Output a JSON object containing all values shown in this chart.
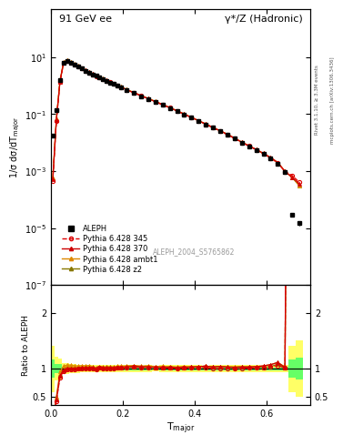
{
  "title_left": "91 GeV ee",
  "title_right": "γ*/Z (Hadronic)",
  "ylabel_main": "1/σ dσ/dT$_{\\mathrm{major}}$",
  "ylabel_ratio": "Ratio to ALEPH",
  "xlabel": "T$_{\\mathrm{major}}$",
  "watermark": "ALEPH_2004_S5765862",
  "right_label_top": "Rivet 3.1.10, ≥ 3.3M events",
  "right_label_bottom": "mcplots.cern.ch [arXiv:1306.3436]",
  "aleph_x": [
    0.005,
    0.015,
    0.025,
    0.035,
    0.045,
    0.055,
    0.065,
    0.075,
    0.085,
    0.095,
    0.105,
    0.115,
    0.125,
    0.135,
    0.145,
    0.155,
    0.165,
    0.175,
    0.185,
    0.195,
    0.21,
    0.23,
    0.25,
    0.27,
    0.29,
    0.31,
    0.33,
    0.35,
    0.37,
    0.39,
    0.41,
    0.43,
    0.45,
    0.47,
    0.49,
    0.51,
    0.53,
    0.55,
    0.57,
    0.59,
    0.61,
    0.63,
    0.65,
    0.67,
    0.69
  ],
  "aleph_y": [
    0.018,
    0.14,
    1.6,
    6.5,
    7.5,
    6.5,
    5.5,
    4.8,
    4.0,
    3.4,
    2.9,
    2.5,
    2.2,
    1.9,
    1.7,
    1.5,
    1.3,
    1.15,
    1.0,
    0.88,
    0.7,
    0.55,
    0.43,
    0.34,
    0.27,
    0.21,
    0.165,
    0.128,
    0.098,
    0.075,
    0.057,
    0.043,
    0.033,
    0.025,
    0.019,
    0.014,
    0.01,
    0.0075,
    0.0055,
    0.004,
    0.0028,
    0.0018,
    0.00095,
    3e-05,
    1.5e-05
  ],
  "aleph_yerr": [
    0.003,
    0.012,
    0.12,
    0.25,
    0.28,
    0.22,
    0.18,
    0.14,
    0.11,
    0.09,
    0.08,
    0.06,
    0.055,
    0.048,
    0.042,
    0.037,
    0.032,
    0.028,
    0.024,
    0.021,
    0.017,
    0.013,
    0.01,
    0.008,
    0.006,
    0.005,
    0.004,
    0.003,
    0.0024,
    0.0018,
    0.0014,
    0.001,
    0.0008,
    0.0006,
    0.00045,
    0.00033,
    0.00024,
    0.00018,
    0.00013,
    9e-05,
    6.5e-05,
    4.5e-05,
    2.5e-05,
    5e-06,
    3e-06
  ],
  "aleph_xw": [
    0.01,
    0.01,
    0.01,
    0.01,
    0.01,
    0.01,
    0.01,
    0.01,
    0.01,
    0.01,
    0.01,
    0.01,
    0.01,
    0.01,
    0.01,
    0.01,
    0.01,
    0.01,
    0.01,
    0.01,
    0.02,
    0.02,
    0.02,
    0.02,
    0.02,
    0.02,
    0.02,
    0.02,
    0.02,
    0.02,
    0.02,
    0.02,
    0.02,
    0.02,
    0.02,
    0.02,
    0.02,
    0.02,
    0.02,
    0.02,
    0.02,
    0.02,
    0.02,
    0.02,
    0.02
  ],
  "py345_y": [
    0.00045,
    0.058,
    1.35,
    6.2,
    7.4,
    6.4,
    5.45,
    4.78,
    4.0,
    3.4,
    2.92,
    2.52,
    2.18,
    1.92,
    1.7,
    1.51,
    1.31,
    1.155,
    1.015,
    0.895,
    0.715,
    0.565,
    0.44,
    0.348,
    0.274,
    0.213,
    0.167,
    0.129,
    0.099,
    0.076,
    0.058,
    0.044,
    0.033,
    0.025,
    0.019,
    0.014,
    0.01,
    0.0076,
    0.0056,
    0.0041,
    0.0029,
    0.0019,
    0.00096,
    0.0007,
    0.0004
  ],
  "py370_y": [
    0.0005,
    0.062,
    1.4,
    6.35,
    7.55,
    6.55,
    5.52,
    4.83,
    4.05,
    3.44,
    2.95,
    2.55,
    2.2,
    1.94,
    1.72,
    1.52,
    1.32,
    1.165,
    1.022,
    0.902,
    0.72,
    0.57,
    0.443,
    0.351,
    0.276,
    0.215,
    0.169,
    0.13,
    0.1,
    0.077,
    0.059,
    0.045,
    0.034,
    0.026,
    0.0195,
    0.0143,
    0.0103,
    0.0077,
    0.0057,
    0.0042,
    0.003,
    0.002,
    0.00097,
    0.0006,
    0.00035
  ],
  "pyambt_y": [
    0.0006,
    0.07,
    1.52,
    6.8,
    8.0,
    6.9,
    5.78,
    5.03,
    4.21,
    3.57,
    3.06,
    2.6,
    2.25,
    1.98,
    1.76,
    1.55,
    1.35,
    1.188,
    1.044,
    0.92,
    0.735,
    0.581,
    0.451,
    0.357,
    0.281,
    0.219,
    0.171,
    0.132,
    0.102,
    0.078,
    0.059,
    0.045,
    0.034,
    0.026,
    0.0197,
    0.0145,
    0.0104,
    0.0078,
    0.0057,
    0.0042,
    0.003,
    0.002,
    0.00098,
    0.00061,
    0.00031
  ],
  "pyz2_y": [
    0.00055,
    0.065,
    1.44,
    6.6,
    7.75,
    6.7,
    5.63,
    4.91,
    4.12,
    3.5,
    3.0,
    2.57,
    2.22,
    1.96,
    1.74,
    1.54,
    1.34,
    1.176,
    1.034,
    0.912,
    0.728,
    0.576,
    0.447,
    0.354,
    0.279,
    0.217,
    0.17,
    0.131,
    0.101,
    0.077,
    0.059,
    0.045,
    0.034,
    0.026,
    0.0196,
    0.0143,
    0.0103,
    0.0077,
    0.0057,
    0.0041,
    0.0029,
    0.00195,
    0.00097,
    0.00059,
    0.0003
  ],
  "bg_yellow": "#ffff66",
  "bg_green": "#66ff66",
  "color_345": "#dd0000",
  "color_370": "#cc0000",
  "color_ambt": "#dd8800",
  "color_z2": "#887700",
  "color_aleph": "#000000",
  "xlim": [
    0.0,
    0.72
  ],
  "ylim_main": [
    1e-07,
    500
  ],
  "ylim_ratio": [
    0.35,
    2.5
  ],
  "ratio_yticks": [
    0.5,
    1.0,
    2.0
  ],
  "ratio_yticklabels": [
    "0.5",
    "1",
    "2"
  ]
}
